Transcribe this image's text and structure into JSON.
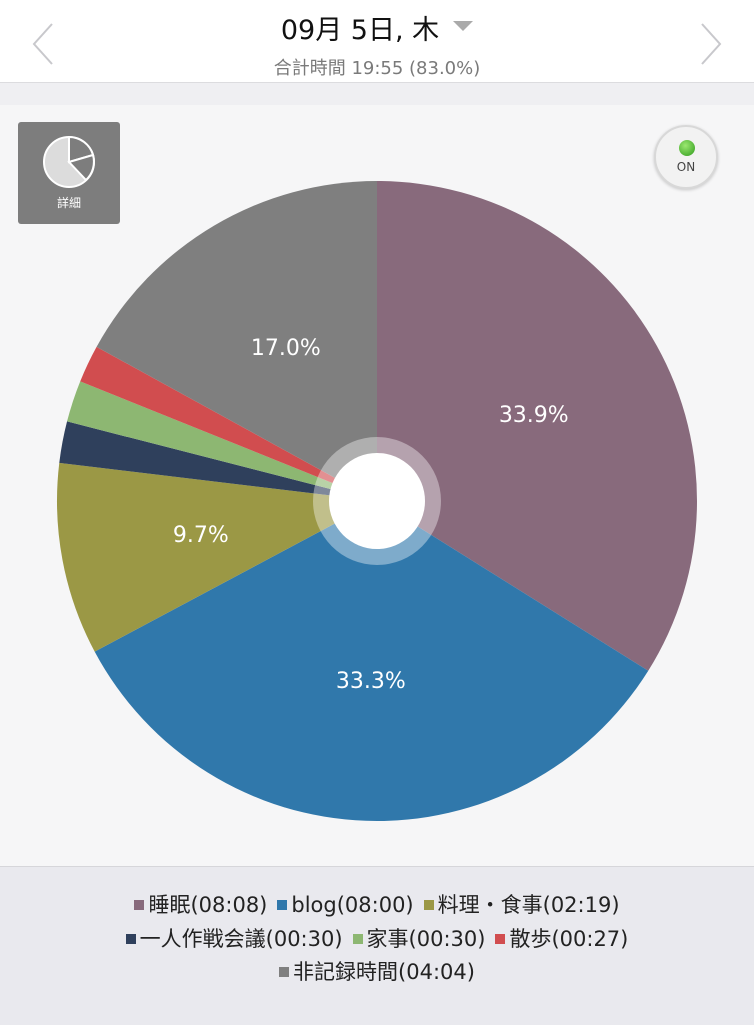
{
  "header": {
    "date": "09月 5日, 木",
    "total": "合計時間 19:55 (83.0%)"
  },
  "controls": {
    "detail_label": "詳細",
    "toggle_label": "ON"
  },
  "chart_data": {
    "type": "pie",
    "donut_hole": true,
    "start": "12 o'clock",
    "direction": "clockwise",
    "slices": [
      {
        "name": "睡眠",
        "legend": "睡眠(08:08)",
        "value": 33.9,
        "label": "33.9%",
        "color": "#886a7c"
      },
      {
        "name": "blog",
        "legend": "blog(08:00)",
        "value": 33.3,
        "label": "33.3%",
        "color": "#3078ab"
      },
      {
        "name": "料理・食事",
        "legend": "料理・食事(02:19)",
        "value": 9.7,
        "label": "9.7%",
        "color": "#9b9845"
      },
      {
        "name": "一人作戦会議",
        "legend": "一人作戦会議(00:30)",
        "value": 2.1,
        "label": "",
        "color": "#2f405c"
      },
      {
        "name": "家事",
        "legend": "家事(00:30)",
        "value": 2.1,
        "label": "",
        "color": "#8db772"
      },
      {
        "name": "散歩",
        "legend": "散歩(00:27)",
        "value": 1.9,
        "label": "",
        "color": "#d14d4f"
      },
      {
        "name": "非記録時間",
        "legend": "非記録時間(04:04)",
        "value": 17.0,
        "label": "17.0%",
        "color": "#7f7f7f"
      }
    ]
  }
}
